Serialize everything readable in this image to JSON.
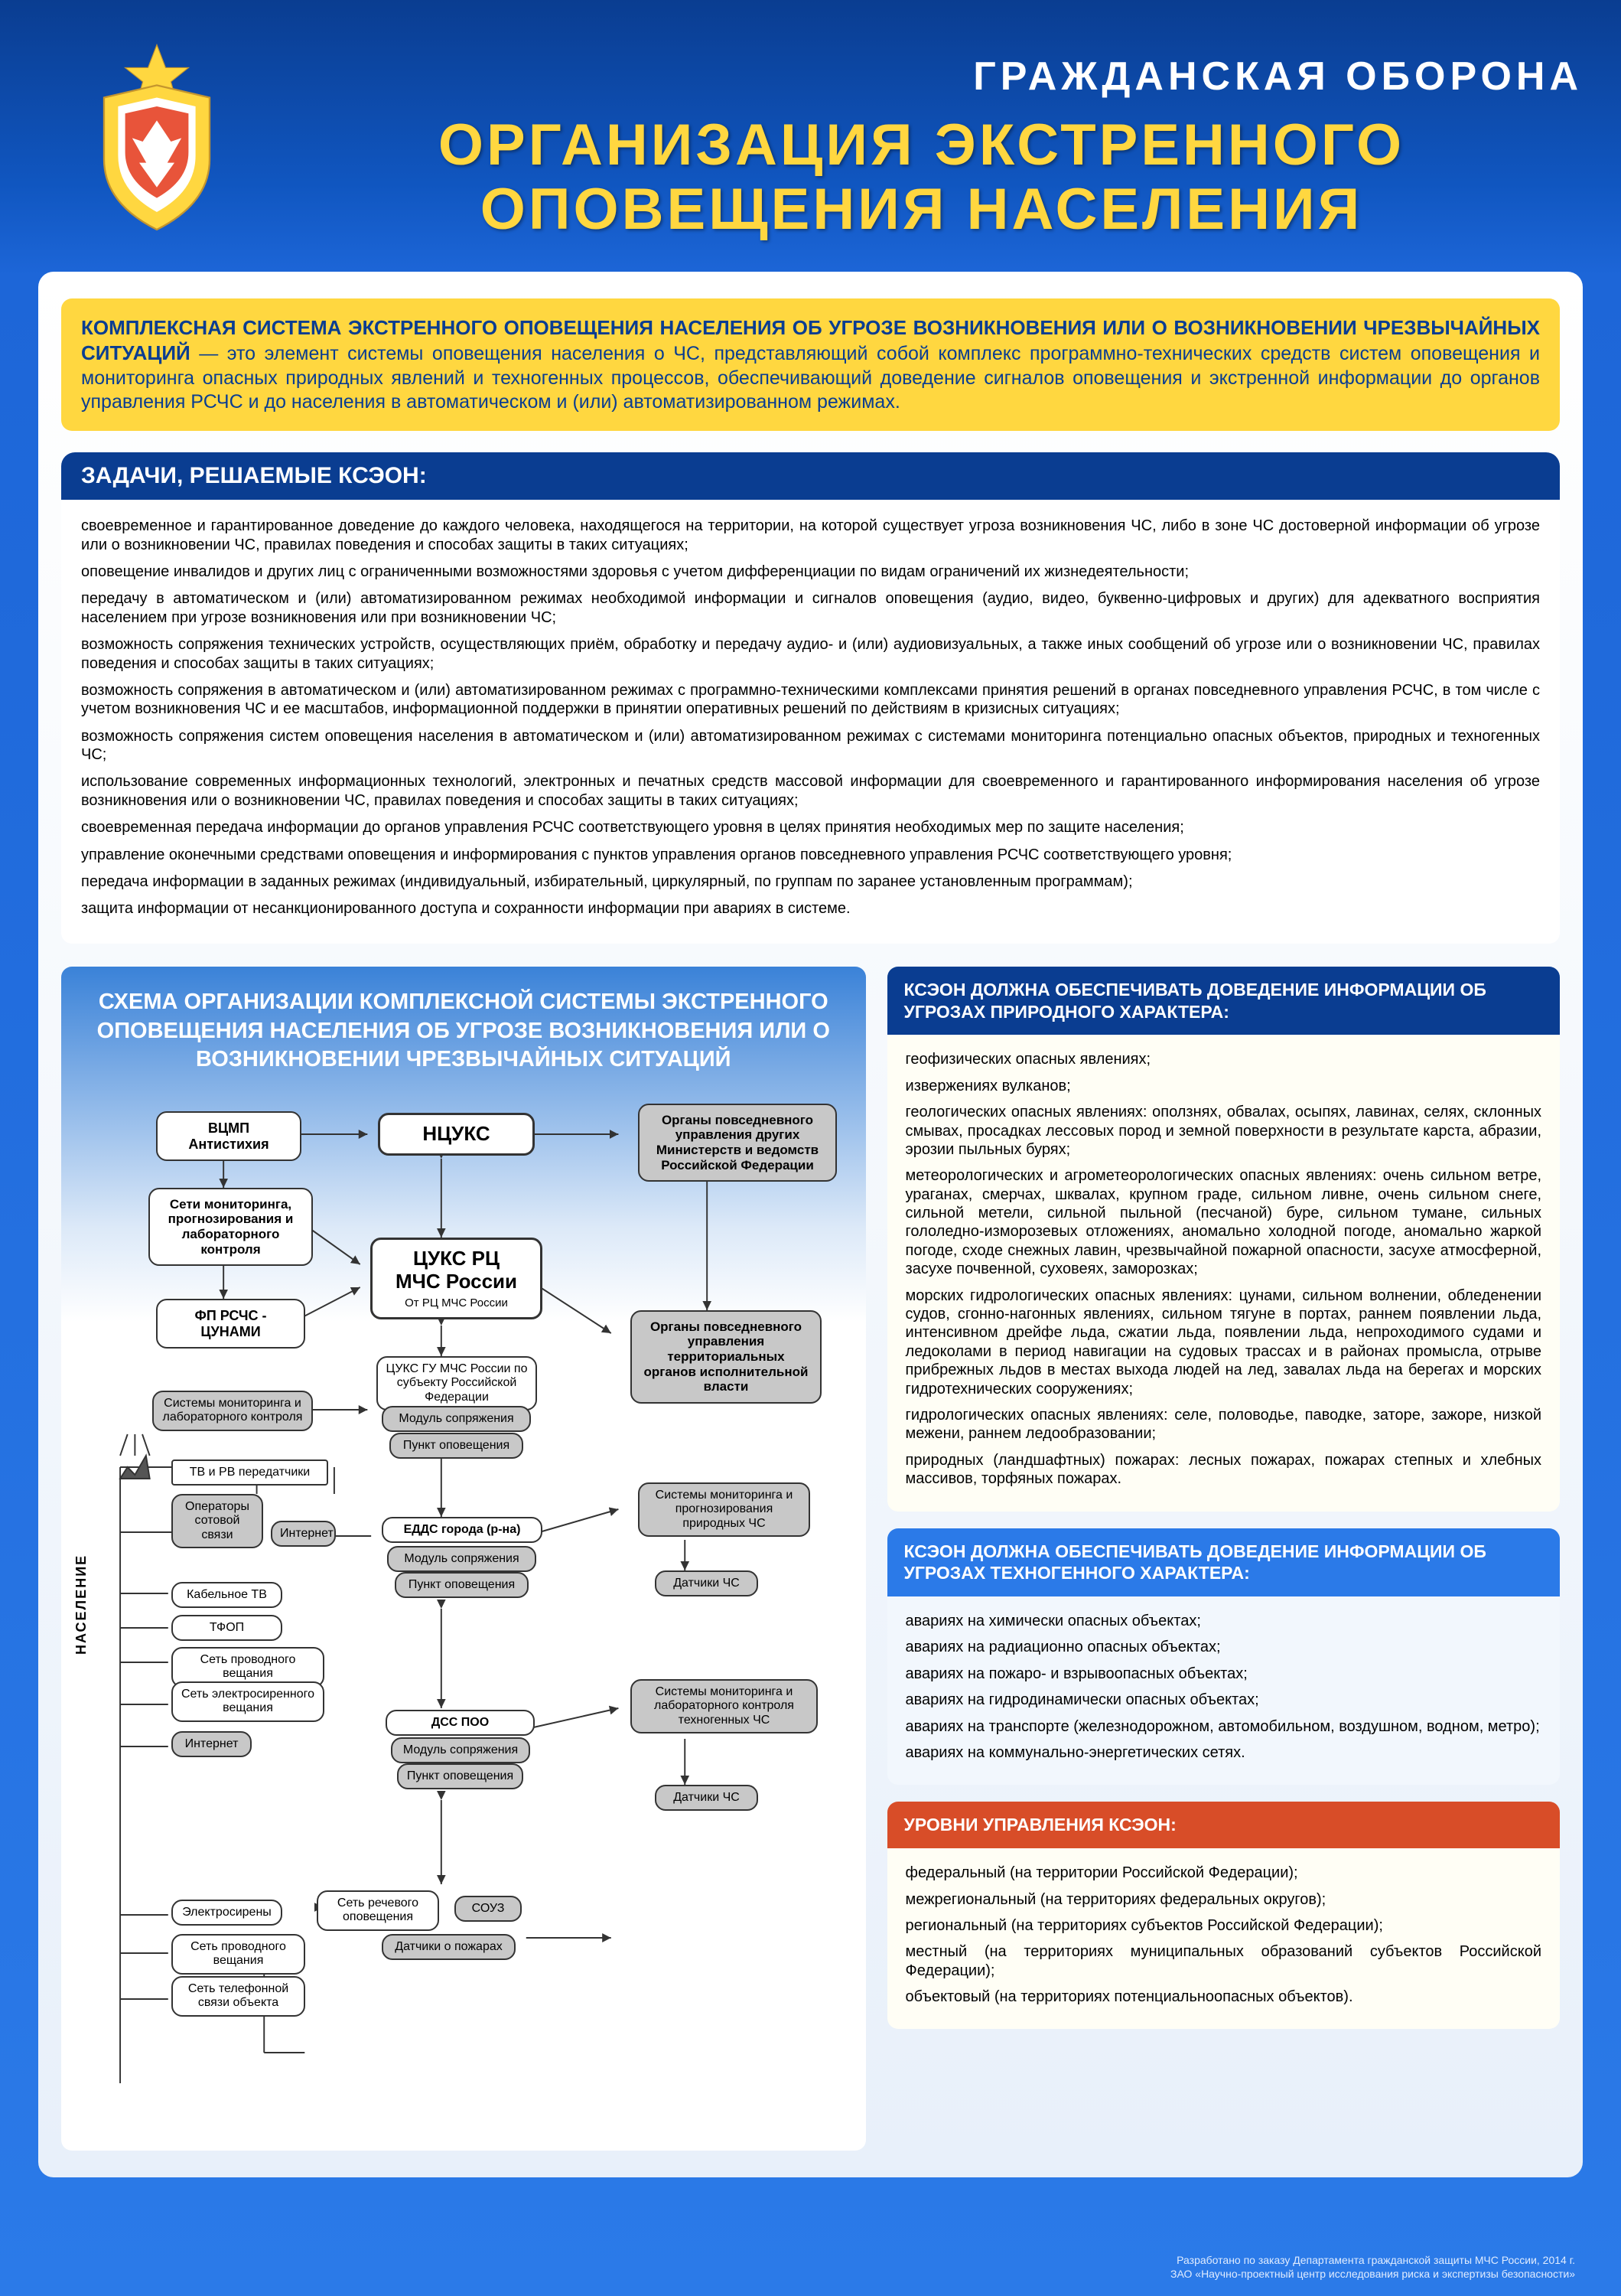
{
  "header": {
    "subtitle": "ГРАЖДАНСКАЯ ОБОРОНА",
    "title1": "ОРГАНИЗАЦИЯ ЭКСТРЕННОГО",
    "title2": "ОПОВЕЩЕНИЯ НАСЕЛЕНИЯ"
  },
  "intro": {
    "bold": "КОМПЛЕКСНАЯ СИСТЕМА ЭКСТРЕННОГО ОПОВЕЩЕНИЯ НАСЕЛЕНИЯ ОБ УГРОЗЕ ВОЗНИКНОВЕНИЯ ИЛИ О ВОЗНИКНОВЕНИИ ЧРЕЗВЫЧАЙНЫХ СИТУАЦИЙ",
    "rest": " — это элемент системы оповещения населения о ЧС, представляющий собой комплекс программно-технических средств систем оповещения и мониторинга опасных природных явлений и техногенных процессов, обеспечивающий доведение сигналов оповещения и экстренной информации до органов управления РСЧС и до населения в автоматическом и (или) автоматизированном режимах."
  },
  "tasks": {
    "header": "ЗАДАЧИ, РЕШАЕМЫЕ КСЭОН:",
    "items": [
      "своевременное и гарантированное доведение до каждого человека, находящегося на территории, на которой существует угроза возникновения ЧС, либо в зоне ЧС достоверной информации об угрозе или о возникновении ЧС, правилах поведения и способах защиты в таких ситуациях;",
      "оповещение инвалидов и других лиц с ограниченными возможностями здоровья с учетом дифференциации по видам ограничений их жизнедеятельности;",
      "передачу в автоматическом и (или) автоматизированном режимах необходимой информации и сигналов оповещения (аудио, видео, буквенно-цифровых и других) для адекватного восприятия населением при угрозе возникновения или при возникновении ЧС;",
      "возможность сопряжения технических устройств, осуществляющих приём, обработку и передачу аудио- и (или) аудиовизуальных, а также иных сообщений об угрозе или о возникновении ЧС, правилах поведения и способах защиты в таких ситуациях;",
      "возможность сопряжения в автоматическом и (или) автоматизированном режимах с программно-техническими комплексами принятия решений в органах повседневного управления РСЧС, в том числе с учетом возникновения ЧС и ее масштабов, информационной поддержки в принятии оперативных решений по действиям в кризисных ситуациях;",
      "возможность сопряжения систем оповещения населения в автоматическом и (или) автоматизированном режимах с системами мониторинга потенциально опасных объектов, природных и техногенных ЧС;",
      "использование современных информационных технологий, электронных и печатных средств массовой информации для своевременного и гарантированного информирования населения об угрозе возникновения или о возникновении ЧС, правилах поведения и способах защиты в таких ситуациях;",
      "своевременная передача информации до органов управления РСЧС соответствующего уровня в целях принятия необходимых мер по защите населения;",
      "управление оконечными средствами оповещения и информирования с пунктов управления органов повседневного управления РСЧС соответствующего уровня;",
      "передача информации в заданных режимах (индивидуальный, избирательный, циркулярный, по группам по заранее установленным программам);",
      "защита информации от несанкционированного доступа и сохранности информации при авариях в системе."
    ]
  },
  "diagram": {
    "title": "СХЕМА ОРГАНИЗАЦИИ КОМПЛЕКСНОЙ СИСТЕМЫ ЭКСТРЕННОГО ОПОВЕЩЕНИЯ НАСЕЛЕНИЯ ОБ УГРОЗЕ ВОЗНИКНОВЕНИЯ ИЛИ О ВОЗНИКНОВЕНИИ ЧРЕЗВЫЧАЙНЫХ СИТУАЦИЙ",
    "nasel": "НАСЕЛЕНИЕ",
    "n": {
      "vcmp": "ВЦМП\nАнтистихия",
      "ncuks": "НЦУКС",
      "ministries": "Органы повседневного управления других Министерств и ведомств Российской Федерации",
      "monitoring": "Сети мониторинга, прогнозирования и лабораторного контроля",
      "cuks": "ЦУКС РЦ\nМЧС России",
      "cuks_sub": "От РЦ МЧС России",
      "fp": "ФП РСЧС -\nЦУНАМИ",
      "territory": "Органы повседневного управления территориальных органов исполнительной власти",
      "guks": "ЦУКС ГУ МЧС России по субъекту Российской Федерации",
      "mod1": "Модуль сопряжения",
      "po1": "Пункт оповещения",
      "sysmon": "Системы мониторинга и лабораторного контроля",
      "tv": "ТВ и РВ передатчики",
      "oper": "Операторы сотовой связи",
      "inet1": "Интернет",
      "edds": "ЕДДС города (р-на)",
      "mod2": "Модуль сопряжения",
      "po2": "Пункт оповещения",
      "natmon": "Системы мониторинга и прогнозирования природных ЧС",
      "sensors1": "Датчики ЧС",
      "ktv": "Кабельное ТВ",
      "tfop": "ТФОП",
      "wire": "Сеть проводного вещания",
      "elec": "Сеть электросиренного вещания",
      "inet2": "Интернет",
      "dss": "ДСС ПОО",
      "mod3": "Модуль сопряжения",
      "po3": "Пункт оповещения",
      "techmon": "Системы мониторинга и лабораторного контроля техногенных ЧС",
      "sensors2": "Датчики ЧС",
      "siren": "Электросирены",
      "wire2": "Сеть проводного вещания",
      "tel": "Сеть телефонной связи объекта",
      "speech": "Сеть речевого оповещения",
      "souz": "СОУЗ",
      "fire": "Датчики о пожарах"
    }
  },
  "natural": {
    "header": "КСЭОН ДОЛЖНА ОБЕСПЕЧИВАТЬ ДОВЕДЕНИЕ ИНФОРМАЦИИ ОБ УГРОЗАХ ПРИРОДНОГО ХАРАКТЕРА:",
    "items": [
      "геофизических опасных явлениях;",
      "извержениях вулканов;",
      "геологических опасных явлениях: оползнях, обвалах, осыпях, лавинах, селях, склонных смывах, просадках лессовых пород и земной поверхности в результате карста, абразии, эрозии пыльных бурях;",
      "метеорологических и агрометеорологических опасных явлениях: очень сильном ветре, ураганах, смерчах, шквалах, крупном граде, сильном ливне, очень сильном снеге, сильной метели, сильной пыльной (песчаной) буре, сильном тумане, сильных гололедно-изморозевых отложениях, аномально холодной погоде, аномально жаркой погоде, сходе снежных лавин, чрезвычайной пожарной опасности, засухе атмосферной, засухе почвенной, суховеях, заморозках;",
      "морских гидрологических опасных явлениях: цунами, сильном волнении, обледенении судов, сгонно-нагонных явлениях, сильном тягуне в портах, раннем появлении льда, интенсивном дрейфе льда, сжатии льда, появлении льда, непроходимого судами и ледоколами в период навигации на судовых трассах и в районах промысла, отрыве прибрежных льдов в местах выхода людей на лед, завалах льда на берегах и морских гидротехнических сооружениях;",
      "гидрологических опасных явлениях: селе, половодье, паводке, заторе, зажоре, низкой межени, раннем ледообразовании;",
      "природных (ландшафтных) пожарах: лесных пожарах, пожарах степных и хлебных массивов, торфяных пожарах."
    ]
  },
  "tech": {
    "header": "КСЭОН ДОЛЖНА ОБЕСПЕЧИВАТЬ ДОВЕДЕНИЕ ИНФОРМАЦИИ ОБ УГРОЗАХ ТЕХНОГЕННОГО ХАРАКТЕРА:",
    "items": [
      "авариях на химически опасных объектах;",
      "авариях на радиационно опасных объектах;",
      "авариях на пожаро- и взрывоопасных объектах;",
      "авариях на гидродинамически опасных объектах;",
      "авариях на транспорте (железнодорожном, автомобильном, воздушном, водном, метро);",
      "авариях на коммунально-энергетических сетях."
    ]
  },
  "levels": {
    "header": "УРОВНИ УПРАВЛЕНИЯ КСЭОН:",
    "items": [
      "федеральный (на территории Российской Федерации);",
      "межрегиональный (на территориях федеральных округов);",
      "региональный (на территориях субъектов Российской Федерации);",
      "местный (на территориях муниципальных образований субъектов Российской Федерации);",
      "объектовый (на территориях потенциальноопасных объектов)."
    ]
  },
  "footer": {
    "l1": "Разработано по заказу Департамента гражданской защиты МЧС России, 2014 г.",
    "l2": "ЗАО «Научно-проектный центр исследования риска и экспертизы безопасности»"
  }
}
